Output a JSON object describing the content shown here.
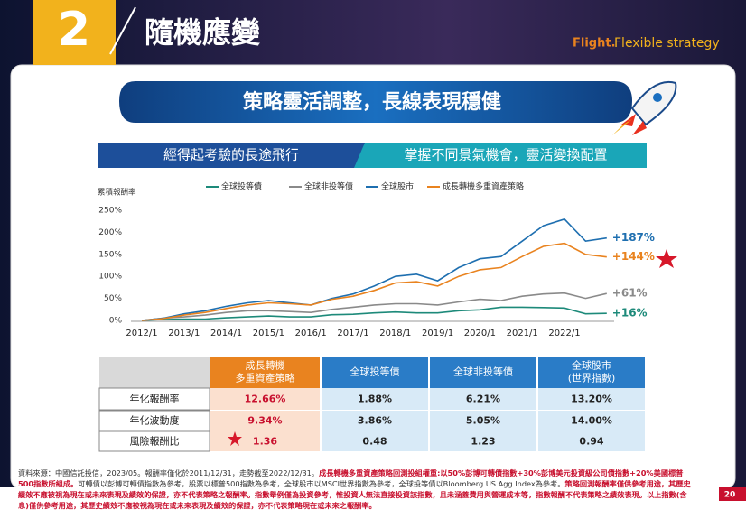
{
  "header": {
    "number": "2",
    "title": "隨機應變",
    "tag_brand": "Flight.",
    "tag_text": "Flexible strategy"
  },
  "banner": "策略靈活調整，長線表現穩健",
  "subheaders": [
    "經得起考驗的長途飛行",
    "掌握不同景氣機會，靈活變換配置"
  ],
  "chart_data": {
    "type": "line",
    "y_label": "累積報酬率",
    "x": [
      "2012/1",
      null,
      "2013/1",
      null,
      "2014/1",
      null,
      "2015/1",
      null,
      "2016/1",
      null,
      "2017/1",
      null,
      "2018/1",
      null,
      "2019/1",
      null,
      "2020/1",
      null,
      "2021/1",
      null,
      "2022/1",
      null,
      null
    ],
    "ylim": [
      0,
      250
    ],
    "yticks": [
      {
        "value": 0,
        "label": "0%"
      },
      {
        "value": 50,
        "label": "50%"
      },
      {
        "value": 100,
        "label": "100%"
      },
      {
        "value": 150,
        "label": "150%"
      },
      {
        "value": 200,
        "label": "200%"
      },
      {
        "value": 250,
        "label": "250%"
      }
    ],
    "legend": "top",
    "series": [
      {
        "name": "全球投等債",
        "color": "#1d8a7a",
        "end_label": "+16%",
        "values": [
          0,
          2,
          3,
          3,
          6,
          8,
          10,
          8,
          8,
          13,
          14,
          17,
          19,
          17,
          17,
          22,
          24,
          30,
          30,
          29,
          28,
          15,
          16
        ]
      },
      {
        "name": "全球非投等債",
        "color": "#8a8a8a",
        "end_label": "+61%",
        "values": [
          0,
          5,
          8,
          12,
          18,
          22,
          22,
          20,
          18,
          25,
          30,
          35,
          38,
          38,
          35,
          42,
          48,
          45,
          55,
          60,
          62,
          50,
          61
        ]
      },
      {
        "name": "全球股市",
        "color": "#1e6fb0",
        "end_label": "+187%",
        "values": [
          0,
          5,
          15,
          22,
          32,
          40,
          45,
          40,
          35,
          50,
          60,
          78,
          100,
          105,
          90,
          120,
          140,
          145,
          180,
          215,
          230,
          180,
          187
        ]
      },
      {
        "name": "成長轉機多重資產策略",
        "color": "#e9831f",
        "end_label": "+144%",
        "values": [
          0,
          4,
          12,
          18,
          27,
          35,
          40,
          38,
          35,
          48,
          55,
          68,
          85,
          88,
          78,
          100,
          115,
          120,
          145,
          168,
          175,
          150,
          144
        ]
      }
    ]
  },
  "table": {
    "header": [
      [
        "成長轉機",
        "多重資產策略"
      ],
      [
        "全球投等債"
      ],
      [
        "全球非投等債"
      ],
      [
        "全球股市",
        "(世界指數)"
      ]
    ],
    "rows": [
      [
        "年化報酬率",
        "12.66%",
        "1.88%",
        "6.21%",
        "13.20%"
      ],
      [
        "年化波動度",
        "9.34%",
        "3.86%",
        "5.05%",
        "14.00%"
      ],
      [
        "風險報酬比",
        "1.36",
        "0.48",
        "1.23",
        "0.94"
      ]
    ]
  },
  "footnote": [
    "資料來源：中國信託投信，2023/05。報酬率僅化於2011/12/31，走勢截至2022/12/31。",
    "成長轉機多重資產策略回測投組權重:以50%彭博可轉債指數+30%彭博美元投資級公司債指數+20%美國標普500指數所組成。",
    "可轉債以彭博可轉債指數為參考，股票以標普500指數為參考，全球股市以MSCI世界指數為參考，全球投等債以Bloomberg US Agg Index為參考。",
    "策略回測報酬率僅供參考用途，其歷史績效不應被視為現在或未來表現及績效的保證，亦不代表策略之報酬率。指數舉例僅為投資參考，惟投資人無法直接投資該指數，且未涵蓋費用與營運成本等，指數報酬不代表策略之績效表現。以上指數(含息)僅供參考用途，其歷史績效不應被視為現在或未來表現及績效的保證，亦不代表策略現在或未來之報酬率。"
  ],
  "page_number": "20"
}
